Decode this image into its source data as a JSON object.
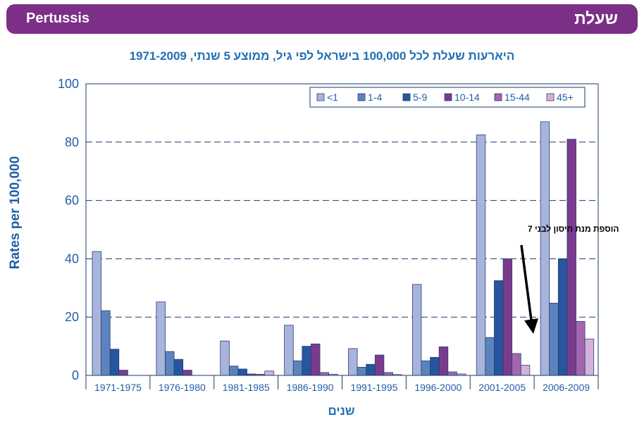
{
  "header": {
    "left_title": "Pertussis",
    "right_title": "שעלת"
  },
  "chart_data": {
    "type": "bar",
    "title": "היארעות שעלת לכל 100,000 בישראל לפי גיל, ממוצע 5 שנתי, 1971-2009",
    "xlabel": "שנים",
    "ylabel": "Rates per 100,000",
    "ylim": [
      0,
      100
    ],
    "yticks": [
      "0",
      "20",
      "40",
      "60",
      "80",
      "100"
    ],
    "ytick_values": [
      0,
      20,
      40,
      60,
      80,
      100
    ],
    "grid": "horizontal dashed",
    "legend_position": "top-right",
    "categories": [
      "1971-1975",
      "1976-1980",
      "1981-1985",
      "1986-1990",
      "1991-1995",
      "1996-2000",
      "2001-2005",
      "2006-2009"
    ],
    "series": [
      {
        "name": "<1",
        "color": "#a7b4dc",
        "values": [
          42.5,
          25.2,
          11.8,
          17.2,
          9.2,
          31.2,
          82.5,
          87.0
        ]
      },
      {
        "name": "1-4",
        "color": "#5b83c0",
        "values": [
          22.2,
          8.2,
          3.2,
          5.0,
          2.8,
          5.0,
          13.0,
          24.8
        ]
      },
      {
        "name": "5-9",
        "color": "#27559f",
        "values": [
          9.0,
          5.5,
          2.2,
          10.0,
          3.8,
          6.2,
          32.5,
          40.0
        ]
      },
      {
        "name": "10-14",
        "color": "#7a3b8f",
        "values": [
          1.8,
          1.8,
          0.5,
          10.8,
          7.0,
          9.8,
          40.0,
          81.0
        ]
      },
      {
        "name": "15-44",
        "color": "#a466b0",
        "values": [
          0.0,
          0.0,
          0.4,
          1.0,
          1.0,
          1.2,
          7.5,
          18.5
        ]
      },
      {
        "name": "45+",
        "color": "#d4b1db",
        "values": [
          0.0,
          0.0,
          1.5,
          0.4,
          0.3,
          0.5,
          3.5,
          12.5
        ]
      }
    ],
    "annotation": {
      "text": "הוספת מנת חיסון לבני 7"
    }
  }
}
